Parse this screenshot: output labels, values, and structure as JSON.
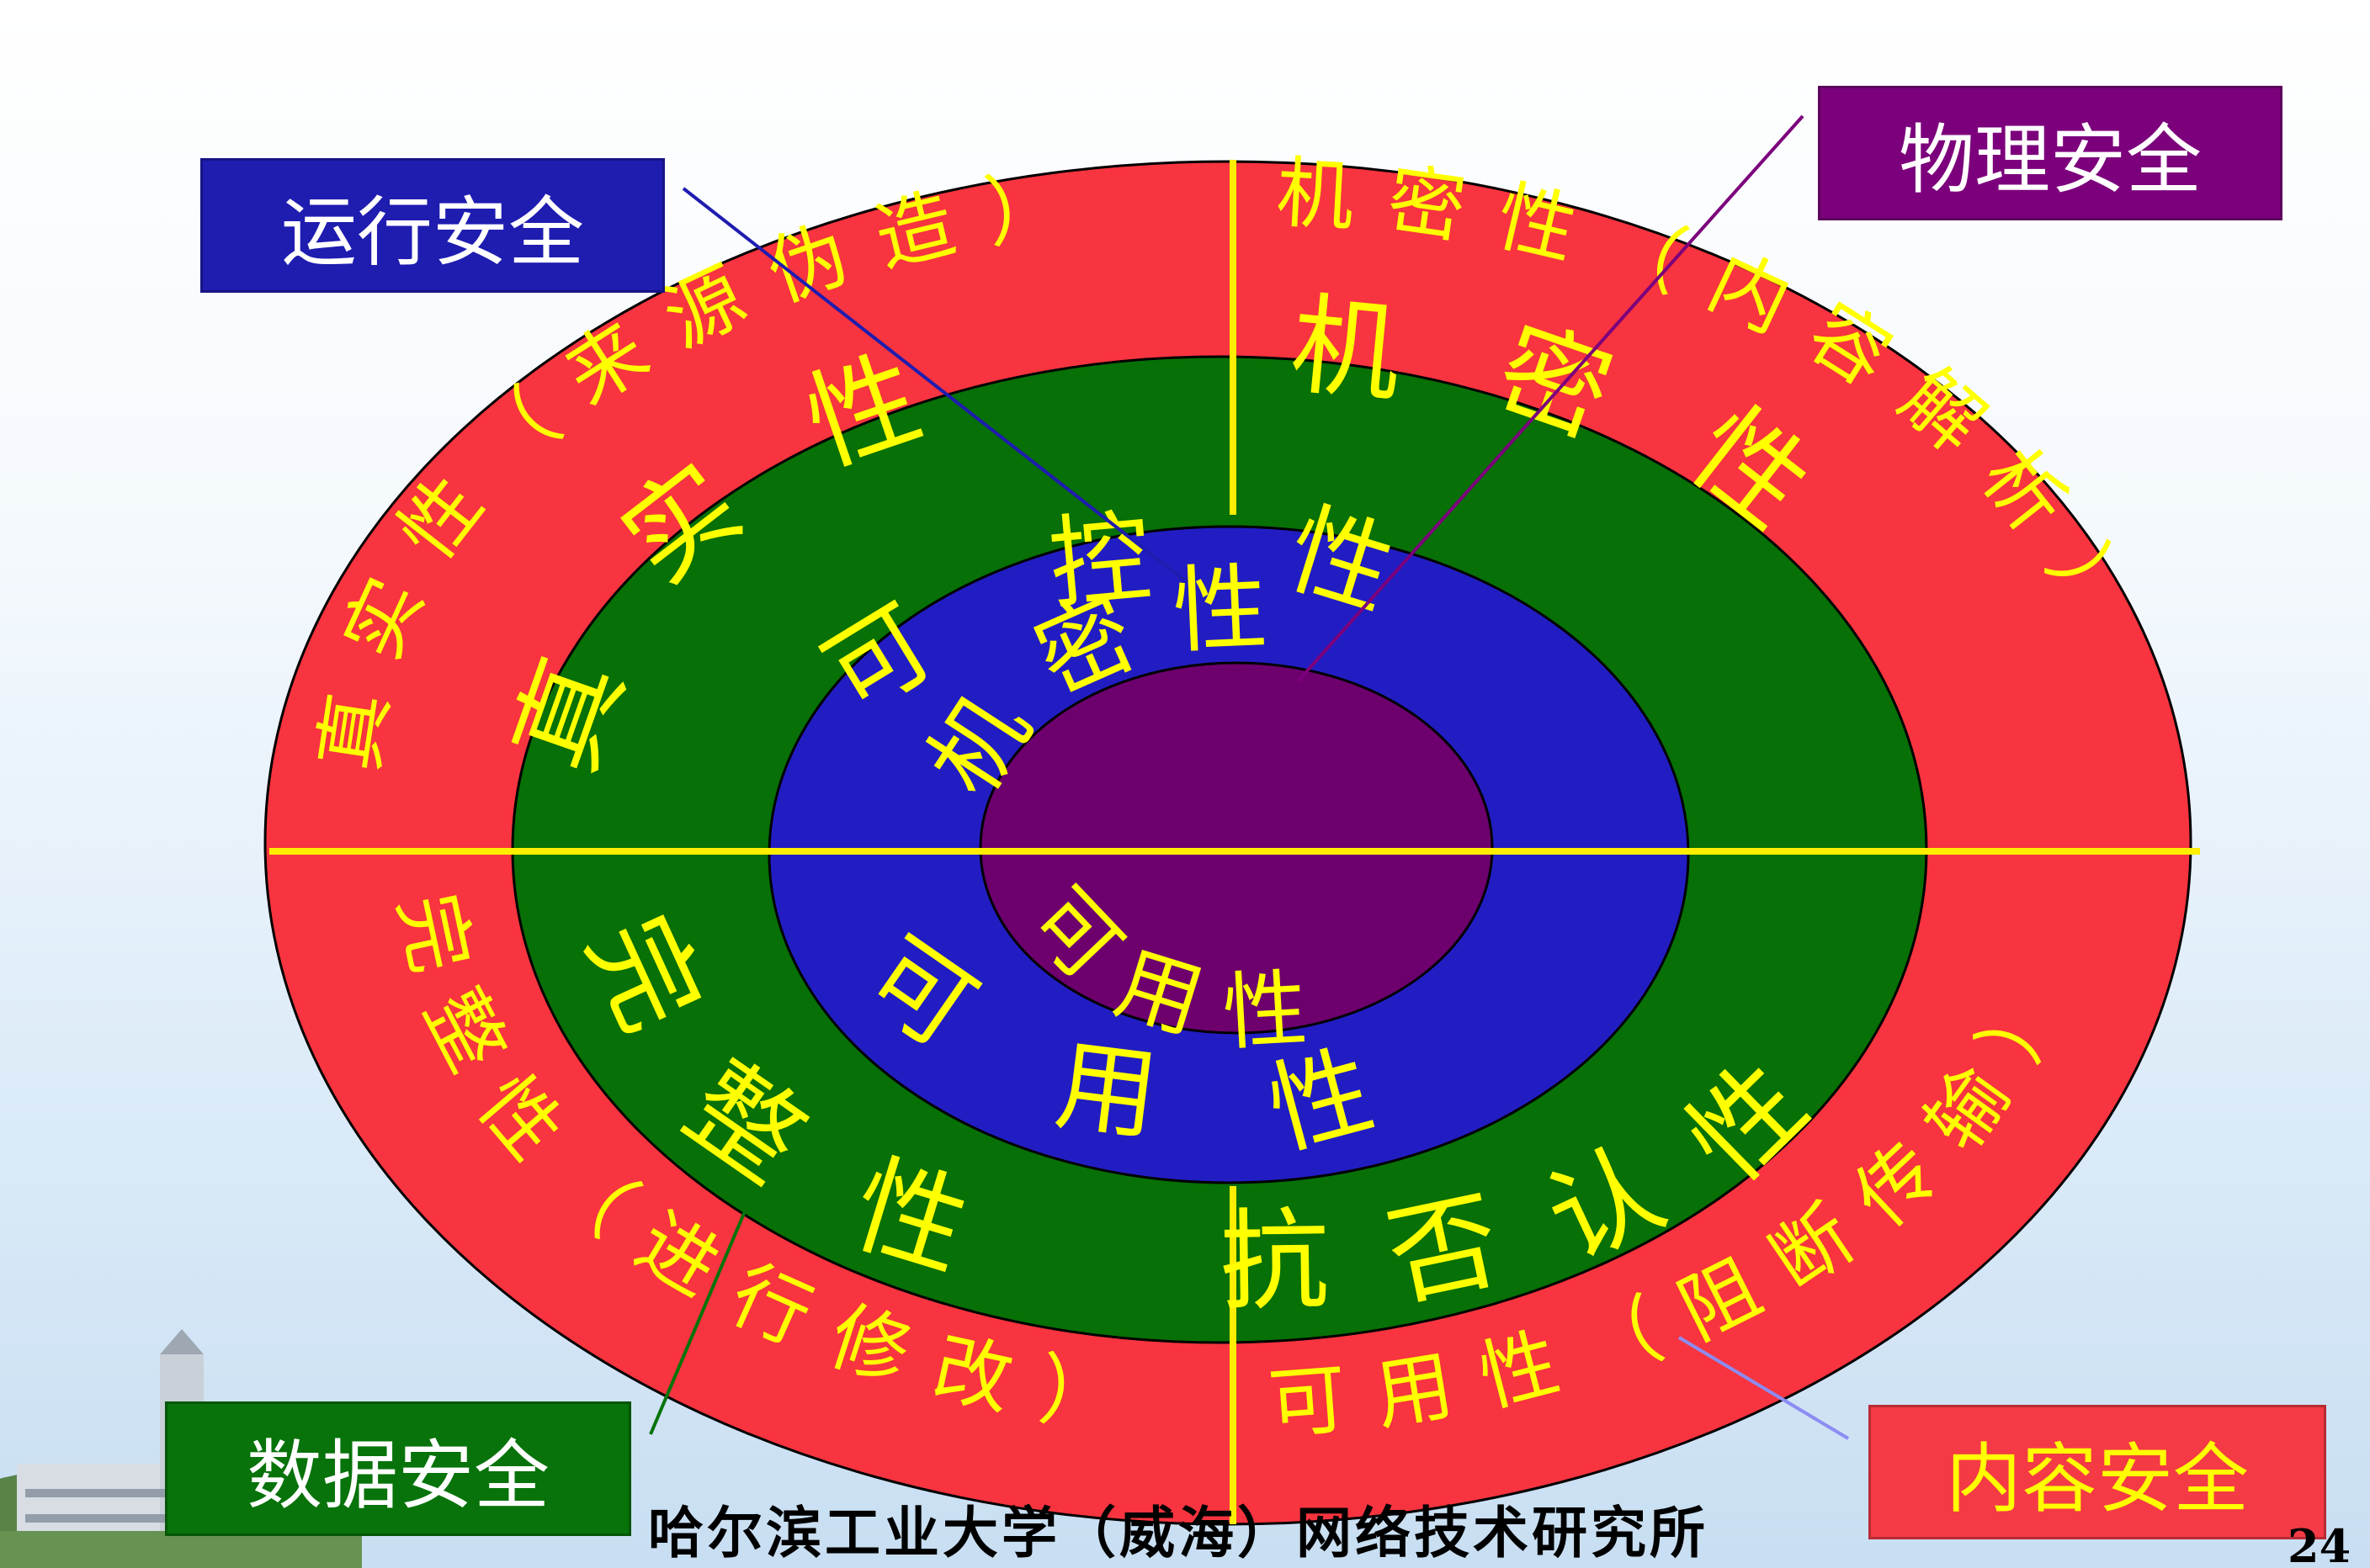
{
  "colors": {
    "outer_ring": "#f7343f",
    "middle_ring": "#077006",
    "inner_ring": "#221dc3",
    "core": "#6e006e",
    "ring_text": "#ffff00",
    "divider": "#ffee00",
    "box_yunxing": "#1f1cb0",
    "box_wuli": "#7c007c",
    "box_shuju": "#07730a",
    "box_neirong": "#f43a45",
    "box_text_light": "#ffffff",
    "box_text_yellow": "#ffff00"
  },
  "labels": {
    "yunxing": "运行安全",
    "wuli": "物理安全",
    "shuju": "数据安全",
    "neirong": "内容安全"
  },
  "outer_ring": {
    "top_left": "真实性（来源伪造）",
    "top_right": "机密性（内容解析）",
    "bottom_left": "完整性（进行修改）",
    "bottom_right": "可用性（阻断传输）"
  },
  "middle_ring": {
    "top_left": "真实性",
    "top_right": "机密性",
    "bottom_left": "完整性",
    "bottom_right": "抗否认性"
  },
  "inner_ring": {
    "top": "可控性",
    "bottom": "可用性"
  },
  "core": {
    "top": "机密性",
    "bottom": "可用性"
  },
  "footer": "哈尔滨工业大学（威海）网络技术研究所",
  "page_number": "24"
}
